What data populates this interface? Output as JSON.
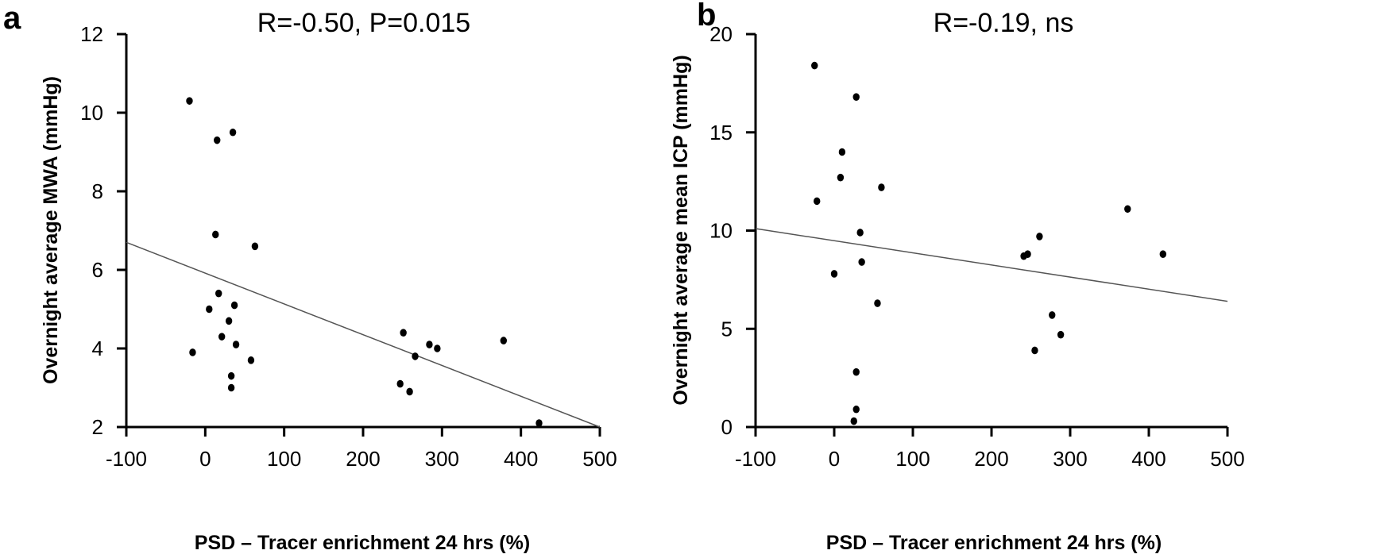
{
  "chart_data": [
    {
      "type": "scatter",
      "panel": "a",
      "title": "R=-0.50, P=0.015",
      "xlabel": "PSD – Tracer enrichment 24 hrs (%)",
      "ylabel": "Overnight average MWA (mmHg)",
      "xlim": [
        -100,
        500
      ],
      "ylim": [
        2,
        12
      ],
      "xticks": [
        -100,
        0,
        100,
        200,
        300,
        400,
        500
      ],
      "yticks": [
        2,
        4,
        6,
        8,
        10,
        12
      ],
      "grid": false,
      "series": [
        {
          "x": [
            -20,
            35,
            15,
            13,
            63,
            17,
            5,
            37,
            30,
            21,
            39,
            -16,
            58,
            33,
            33,
            251,
            266,
            284,
            294,
            247,
            259,
            378,
            423
          ],
          "y": [
            10.3,
            9.5,
            9.3,
            6.9,
            6.6,
            5.4,
            5.0,
            5.1,
            4.7,
            4.3,
            4.1,
            3.9,
            3.7,
            3.3,
            3.0,
            4.4,
            3.8,
            4.1,
            4.0,
            3.1,
            2.9,
            4.2,
            2.1
          ]
        }
      ],
      "trendline": {
        "x": [
          -100,
          500
        ],
        "y": [
          6.7,
          2.0
        ]
      }
    },
    {
      "type": "scatter",
      "panel": "b",
      "title": "R=-0.19, ns",
      "xlabel": "PSD – Tracer enrichment 24 hrs (%)",
      "ylabel": "Overnight average mean ICP (mmHg)",
      "xlim": [
        -100,
        500
      ],
      "ylim": [
        0,
        20
      ],
      "xticks": [
        -100,
        0,
        100,
        200,
        300,
        400,
        500
      ],
      "yticks": [
        0,
        5,
        10,
        15,
        20
      ],
      "grid": false,
      "series": [
        {
          "x": [
            -25,
            28,
            10,
            8,
            -22,
            60,
            33,
            35,
            0,
            55,
            28,
            28,
            25,
            241,
            246,
            261,
            373,
            418,
            277,
            288,
            255
          ],
          "y": [
            18.4,
            16.8,
            14.0,
            12.7,
            11.5,
            12.2,
            9.9,
            8.4,
            7.8,
            6.3,
            2.8,
            0.9,
            0.3,
            8.7,
            8.8,
            9.7,
            11.1,
            8.8,
            5.7,
            4.7,
            3.9
          ]
        }
      ],
      "trendline": {
        "x": [
          -100,
          500
        ],
        "y": [
          10.1,
          6.4
        ]
      }
    }
  ],
  "panels": [
    {
      "letter": "a"
    },
    {
      "letter": "b"
    }
  ],
  "colors": {
    "axis": "#000000",
    "point": "#000000",
    "trendline": "#555555"
  }
}
